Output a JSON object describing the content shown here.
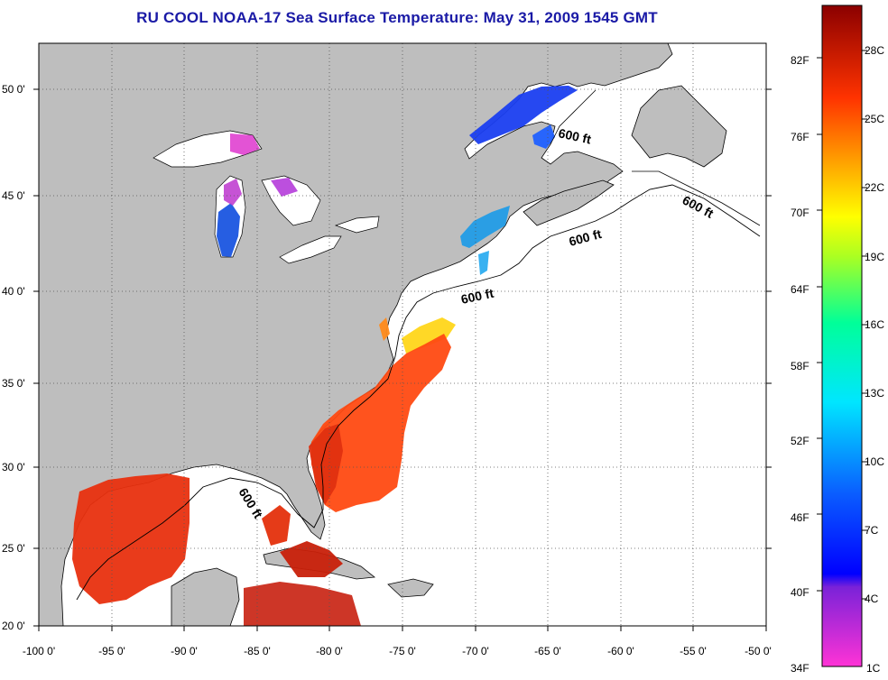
{
  "title": "RU COOL  NOAA-17  Sea Surface Temperature:  May 31, 2009 1545 GMT",
  "map": {
    "lon_range": [
      -100,
      -50
    ],
    "lat_range": [
      20,
      52.5
    ],
    "x_ticks": [
      "-100 0'",
      "-95 0'",
      "-90 0'",
      "-85 0'",
      "-80 0'",
      "-75 0'",
      "-70 0'",
      "-65 0'",
      "-60 0'",
      "-55 0'",
      "-50 0'"
    ],
    "y_ticks": [
      "20 0'",
      "25 0'",
      "30 0'",
      "35 0'",
      "40 0'",
      "45 0'",
      "50 0'"
    ],
    "isobath_labels": [
      "600 ft",
      "600 ft",
      "600 ft",
      "600 ft",
      "600 ft"
    ],
    "colors": {
      "land": "#bebebe",
      "no_data": "#ffffff",
      "grid": "#555555"
    }
  },
  "colorbar": {
    "fahrenheit_labels": [
      "34F",
      "40F",
      "46F",
      "52F",
      "58F",
      "64F",
      "70F",
      "76F",
      "82F"
    ],
    "celsius_labels": [
      "1C",
      "4C",
      "7C",
      "10C",
      "13C",
      "16C",
      "19C",
      "22C",
      "25C",
      "28C"
    ],
    "range_c": [
      1,
      30
    ]
  }
}
